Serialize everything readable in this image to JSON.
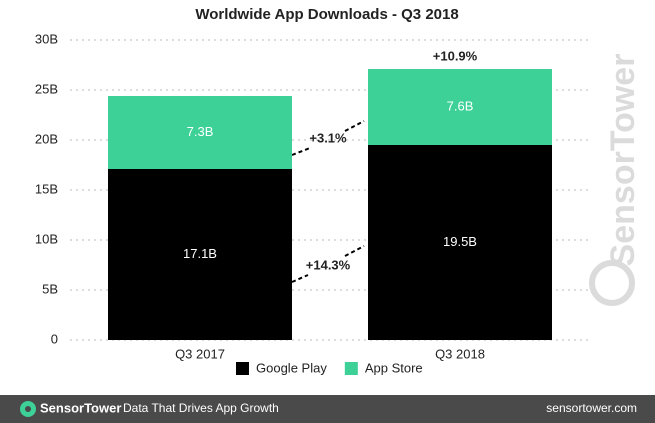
{
  "chart_data": {
    "type": "bar",
    "stacked": true,
    "title": "Worldwide App Downloads - Q3 2018",
    "categories": [
      "Q3 2017",
      "Q3 2018"
    ],
    "series": [
      {
        "name": "Google Play",
        "color": "#000000",
        "values": [
          17.1,
          19.5
        ],
        "value_labels": [
          "17.1B",
          "19.5B"
        ]
      },
      {
        "name": "App Store",
        "color": "#3dd198",
        "values": [
          7.3,
          7.6
        ],
        "value_labels": [
          "7.3B",
          "7.6B"
        ]
      }
    ],
    "ylim": [
      0,
      30
    ],
    "yticks": [
      0,
      {
        "value": 5,
        "label": "5B"
      },
      {
        "value": 10,
        "label": "10B"
      },
      {
        "value": 15,
        "label": "15B"
      },
      {
        "value": 20,
        "label": "20B"
      },
      {
        "value": 25,
        "label": "25B"
      },
      {
        "value": 30,
        "label": "30B"
      }
    ],
    "grid": true,
    "annotations": [
      "+10.9%",
      "+3.1%",
      "+14.3%"
    ]
  },
  "watermark": "SensorTower",
  "footer": {
    "brand": "SensorTower",
    "tagline": "Data That Drives App Growth",
    "url": "sensortower.com"
  }
}
